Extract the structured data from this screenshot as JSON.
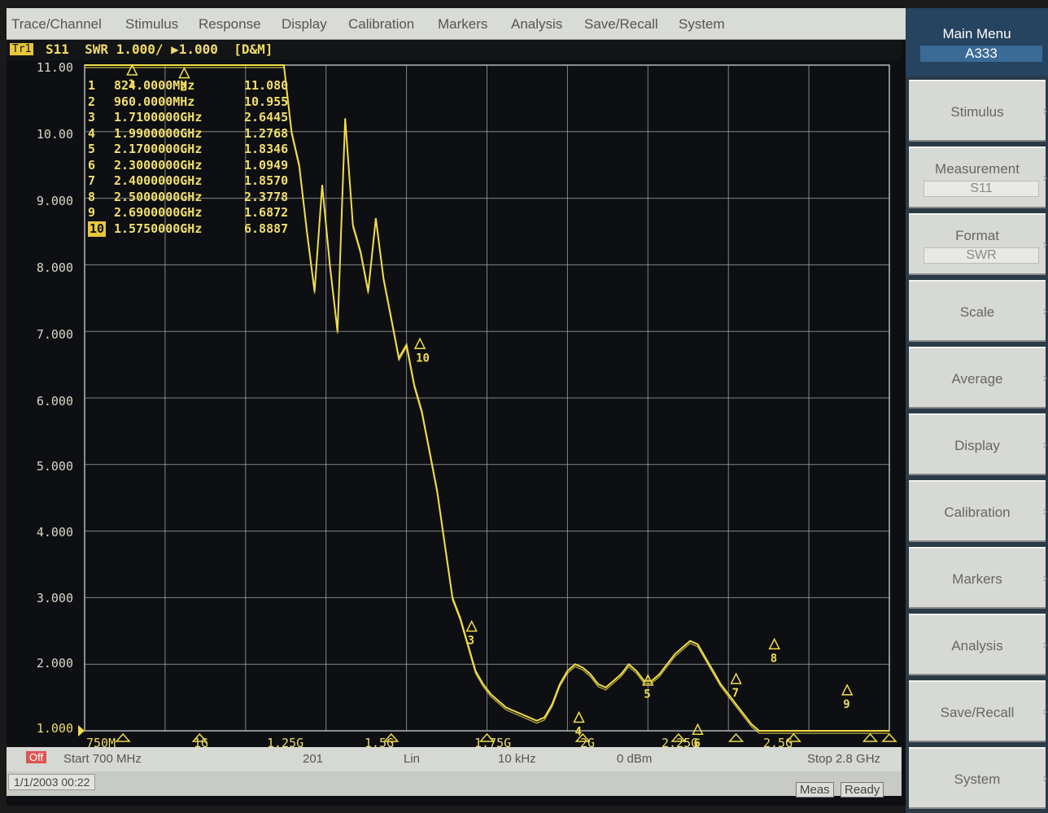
{
  "menubar": {
    "items": [
      "Trace/Channel",
      "Stimulus",
      "Response",
      "Display",
      "Calibration",
      "Markers",
      "Analysis",
      "Save/Recall",
      "System"
    ]
  },
  "trace": {
    "badge": "Tr1",
    "header": "S11  SWR 1.000/ ▶1.000  [D&M]"
  },
  "y_axis": {
    "ticks": [
      "11.00",
      "10.00",
      "9.000",
      "8.000",
      "7.000",
      "6.000",
      "5.000",
      "4.000",
      "3.000",
      "2.000",
      "1.000"
    ]
  },
  "x_axis": {
    "labels": [
      "750M",
      "1G",
      "1.25G",
      "1.5G",
      "1.75G",
      "2G",
      "2.25G",
      "2.5G"
    ]
  },
  "markers": [
    {
      "num": "1",
      "freq": "824.0000MHz",
      "value": "11.080"
    },
    {
      "num": "2",
      "freq": "960.0000MHz",
      "value": "10.955"
    },
    {
      "num": "3",
      "freq": "1.7100000GHz",
      "value": "2.6445"
    },
    {
      "num": "4",
      "freq": "1.9900000GHz",
      "value": "1.2768"
    },
    {
      "num": "5",
      "freq": "2.1700000GHz",
      "value": "1.8346"
    },
    {
      "num": "6",
      "freq": "2.3000000GHz",
      "value": "1.0949"
    },
    {
      "num": "7",
      "freq": "2.4000000GHz",
      "value": "1.8570"
    },
    {
      "num": "8",
      "freq": "2.5000000GHz",
      "value": "2.3778"
    },
    {
      "num": "9",
      "freq": "2.6900000GHz",
      "value": "1.6872"
    },
    {
      "num": "10",
      "freq": "1.5750000GHz",
      "value": "6.8887"
    }
  ],
  "status": {
    "off": "Off",
    "start": "Start 700 MHz",
    "points": "201",
    "sweep": "Lin",
    "ifbw": "10 kHz",
    "power": "0 dBm",
    "stop": "Stop 2.8 GHz"
  },
  "bottom": {
    "datetime": "1/1/2003 00:22",
    "meas": "Meas",
    "ready": "Ready"
  },
  "softkeys": {
    "title": "Main Menu",
    "subtitle": "A333",
    "keys": [
      {
        "label": "Stimulus",
        "value": ""
      },
      {
        "label": "Measurement",
        "value": "S11"
      },
      {
        "label": "Format",
        "value": "SWR"
      },
      {
        "label": "Scale",
        "value": ""
      },
      {
        "label": "Average",
        "value": ""
      },
      {
        "label": "Display",
        "value": ""
      },
      {
        "label": "Calibration",
        "value": ""
      },
      {
        "label": "Markers",
        "value": ""
      },
      {
        "label": "Analysis",
        "value": ""
      },
      {
        "label": "Save/Recall",
        "value": ""
      },
      {
        "label": "System",
        "value": ""
      }
    ]
  },
  "colors": {
    "trace": "#f0dc4a",
    "grid": "#b4b8b4",
    "background": "#0d0f12"
  },
  "chart_data": {
    "type": "line",
    "x_unit": "GHz",
    "x_range": [
      0.7,
      2.8
    ],
    "y_range": [
      1.0,
      11.0
    ],
    "y_format": "SWR",
    "series": [
      {
        "x": [
          0.7,
          0.72,
          0.74,
          0.76,
          0.78,
          0.8,
          0.82,
          0.84,
          0.86,
          0.88,
          0.9,
          0.92,
          0.94,
          0.96,
          0.98,
          1.0,
          1.02,
          1.04,
          1.06,
          1.08,
          1.1,
          1.12,
          1.14,
          1.16,
          1.18,
          1.2,
          1.22,
          1.24,
          1.26,
          1.28,
          1.3,
          1.32,
          1.34,
          1.36,
          1.38,
          1.4,
          1.42,
          1.44,
          1.46,
          1.48,
          1.5,
          1.52,
          1.54,
          1.56,
          1.58,
          1.6,
          1.62,
          1.64,
          1.66,
          1.68,
          1.7,
          1.72,
          1.74,
          1.76,
          1.78,
          1.8,
          1.82,
          1.84,
          1.86,
          1.88,
          1.9,
          1.92,
          1.94,
          1.96,
          1.98,
          2.0,
          2.02,
          2.04,
          2.06,
          2.08,
          2.1,
          2.12,
          2.14,
          2.16,
          2.18,
          2.2,
          2.22,
          2.24,
          2.26,
          2.28,
          2.3,
          2.32,
          2.34,
          2.36,
          2.38,
          2.4,
          2.42,
          2.44,
          2.46,
          2.48,
          2.5,
          2.52,
          2.54,
          2.56,
          2.58,
          2.6,
          2.62,
          2.64,
          2.66,
          2.68,
          2.7,
          2.72,
          2.74,
          2.76,
          2.78,
          2.8
        ],
        "y": [
          11.0,
          11.0,
          11.0,
          11.0,
          11.0,
          11.0,
          11.0,
          11.0,
          11.0,
          11.0,
          11.0,
          11.0,
          11.0,
          11.0,
          11.0,
          11.0,
          11.0,
          11.0,
          11.0,
          11.0,
          11.0,
          11.0,
          11.0,
          11.0,
          11.0,
          11.0,
          11.0,
          10.0,
          9.5,
          8.5,
          7.6,
          9.2,
          8.0,
          7.0,
          10.2,
          8.6,
          8.2,
          7.6,
          8.7,
          7.8,
          7.2,
          6.6,
          6.8,
          6.2,
          5.8,
          5.2,
          4.6,
          3.8,
          3.0,
          2.7,
          2.3,
          1.9,
          1.7,
          1.55,
          1.45,
          1.35,
          1.3,
          1.25,
          1.2,
          1.15,
          1.2,
          1.4,
          1.7,
          1.9,
          2.0,
          1.95,
          1.85,
          1.7,
          1.65,
          1.75,
          1.85,
          2.0,
          1.9,
          1.75,
          1.75,
          1.85,
          2.0,
          2.15,
          2.25,
          2.35,
          2.3,
          2.1,
          1.9,
          1.7,
          1.55,
          1.4,
          1.25,
          1.1,
          1.0,
          1.0,
          1.0,
          1.0,
          1.0,
          1.0,
          1.0,
          1.0,
          1.0,
          1.0,
          1.0,
          1.0,
          1.0,
          1.0,
          1.0,
          1.0,
          1.0,
          1.0
        ]
      }
    ]
  }
}
